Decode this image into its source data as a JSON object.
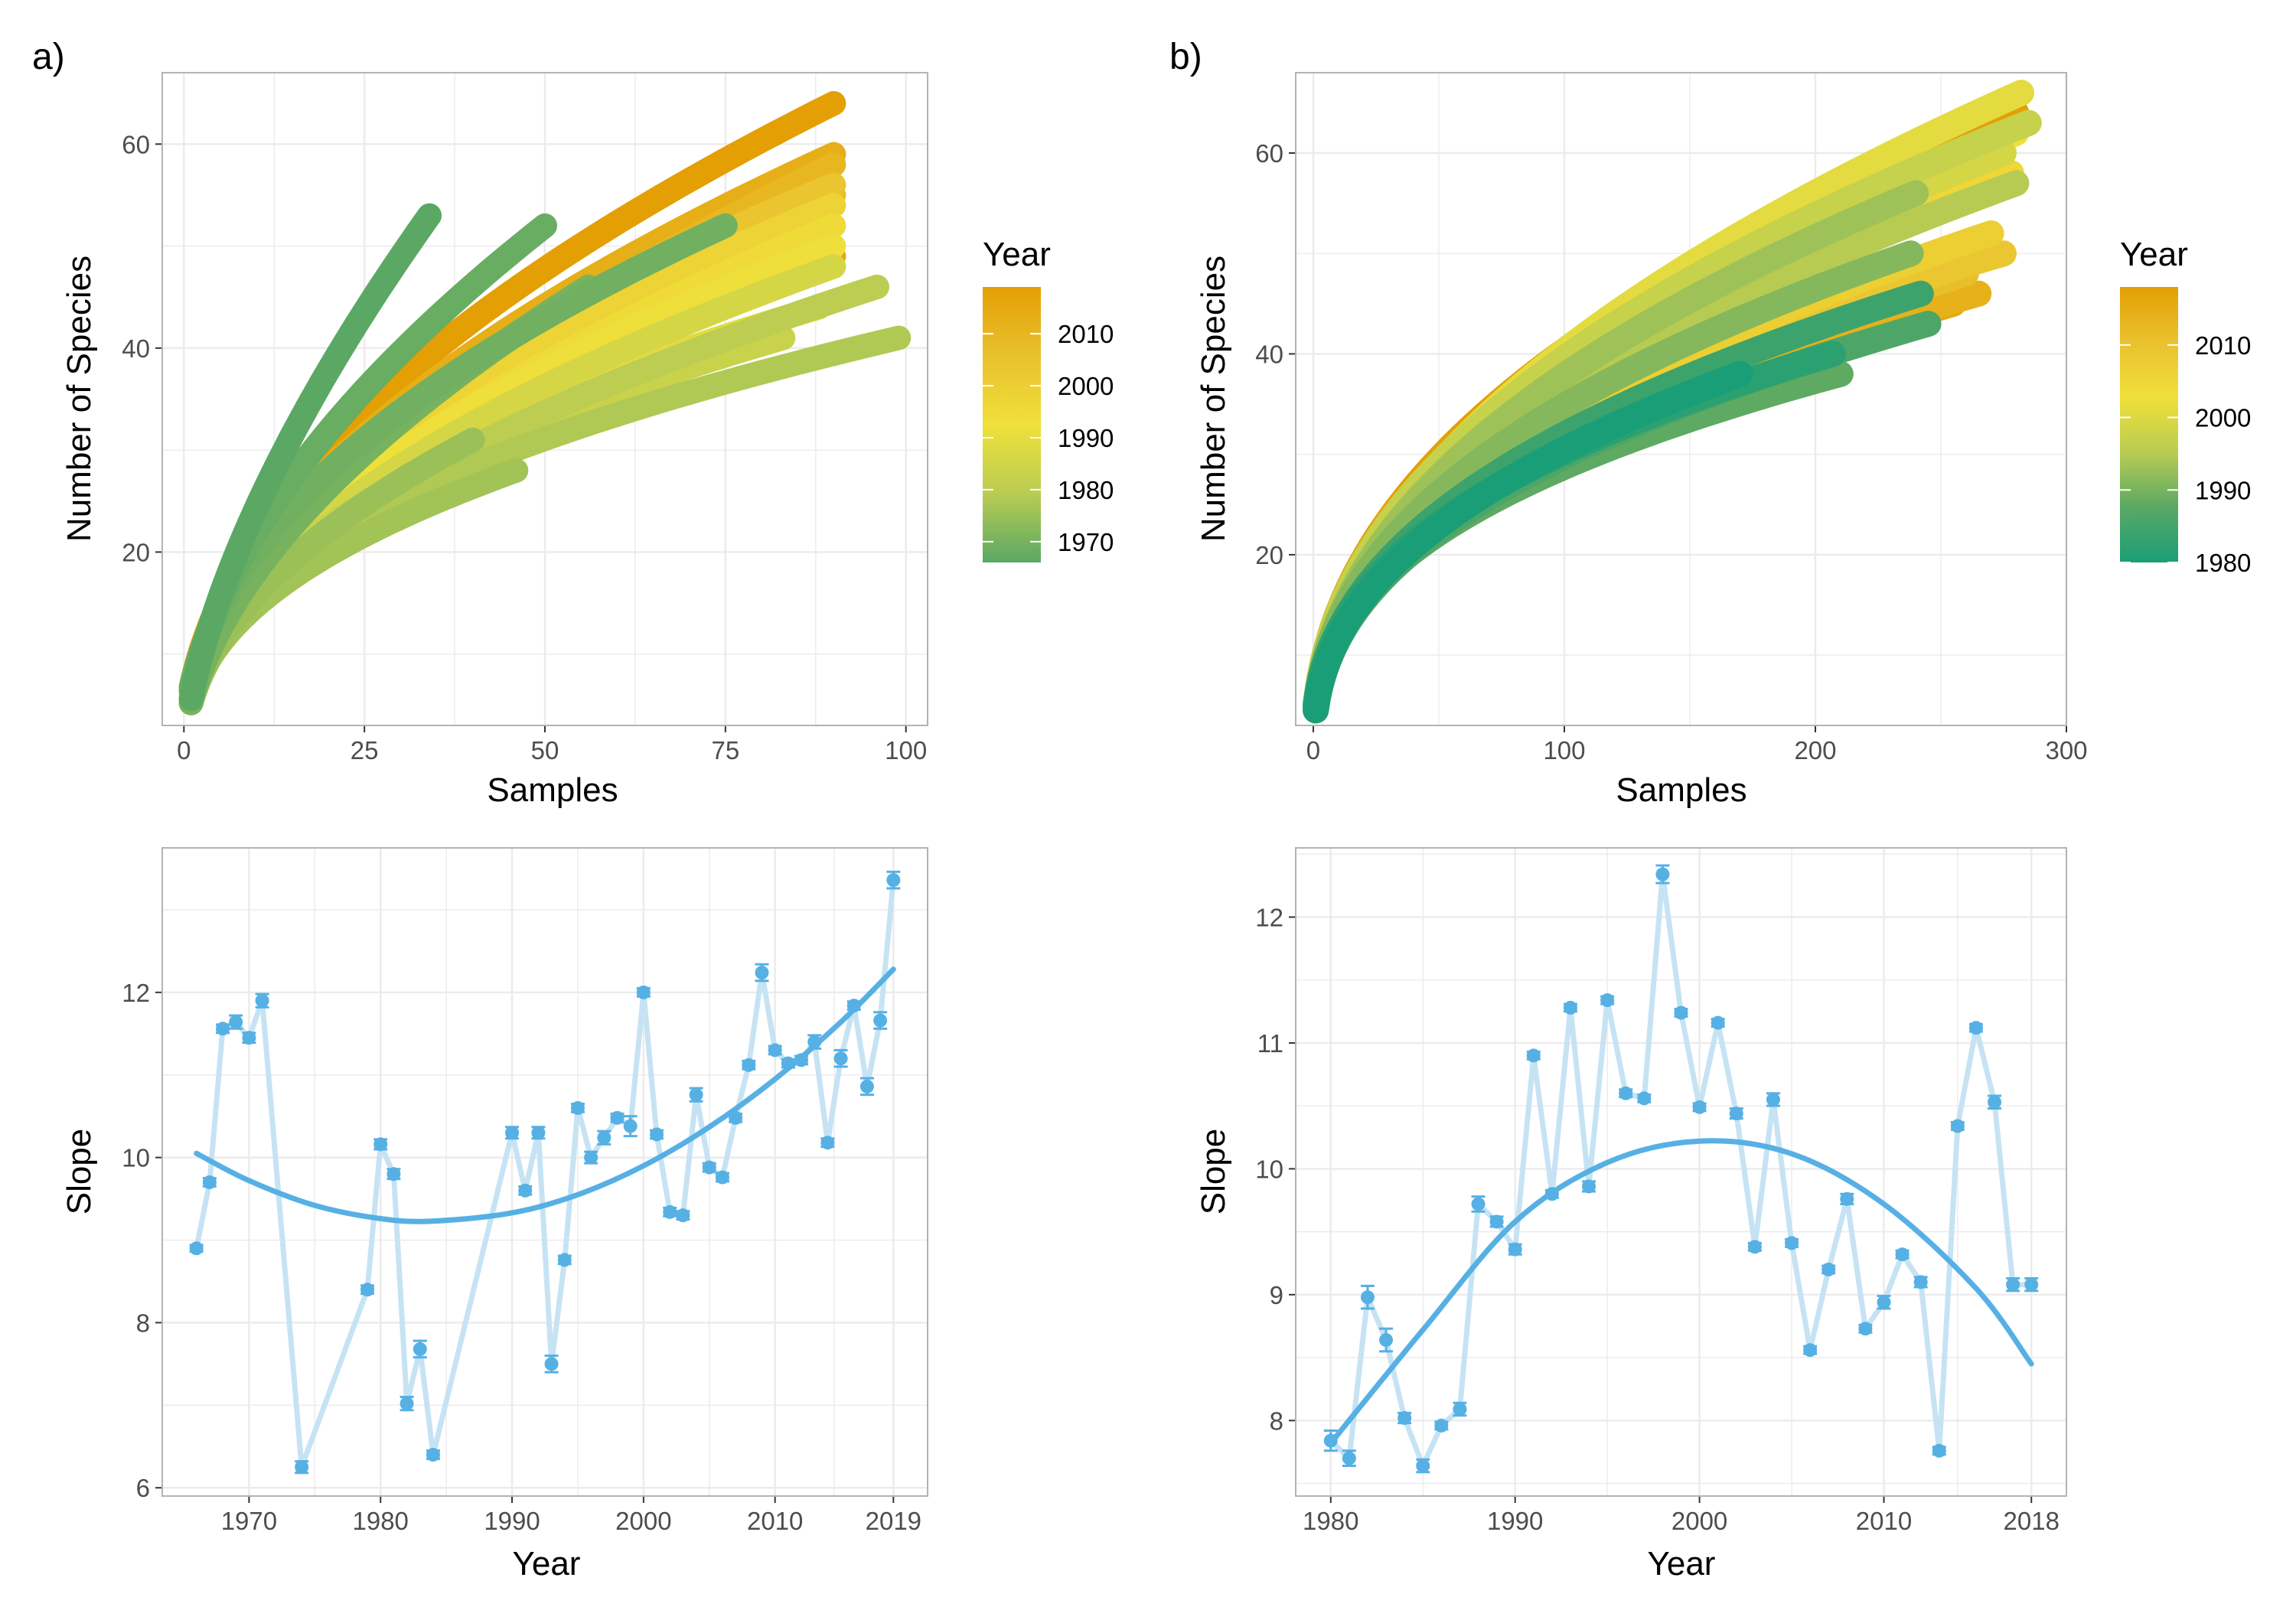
{
  "panels": {
    "a": {
      "letter": "a)"
    },
    "b": {
      "letter": "b)"
    }
  },
  "colors": {
    "dark_green": "#1a9e77",
    "green": "#5aa864",
    "olive": "#b9cc52",
    "yellow": "#f0e03a",
    "gold": "#e9c12e",
    "orange": "#e49f04",
    "slope_point": "#56b0e4",
    "slope_line": "#c6e3f4",
    "fit_line": "#56b0e4",
    "grid": "#ebebeb",
    "frame": "#b3b3b3"
  },
  "chart_data": [
    {
      "id": "a-top",
      "type": "scatter",
      "xlabel": "Samples",
      "ylabel": "Number of Species",
      "xlim": [
        -3,
        103
      ],
      "ylim": [
        3,
        67
      ],
      "xticks": [
        0,
        25,
        50,
        75,
        100
      ],
      "yticks": [
        20,
        40,
        60
      ],
      "legend": {
        "title": "Year",
        "position": "right",
        "range": [
          1966,
          2019
        ],
        "breaks": [
          2010,
          2000,
          1990,
          1980,
          1970
        ],
        "palette": "#5aa864,#b9cc52,#f0e03a,#e9c12e,#e49f04"
      },
      "series": [
        {
          "year": 1966,
          "n": 34,
          "s": 53
        },
        {
          "year": 1968,
          "n": 50,
          "s": 52
        },
        {
          "year": 1969,
          "n": 75,
          "s": 52
        },
        {
          "year": 1970,
          "n": 56,
          "s": 46
        },
        {
          "year": 1971,
          "n": 12,
          "s": 26
        },
        {
          "year": 1975,
          "n": 40,
          "s": 31
        },
        {
          "year": 1976,
          "n": 46,
          "s": 28
        },
        {
          "year": 1978,
          "n": 99,
          "s": 41
        },
        {
          "year": 1980,
          "n": 96,
          "s": 46
        },
        {
          "year": 1983,
          "n": 83,
          "s": 41
        },
        {
          "year": 1986,
          "n": 90,
          "s": 48
        },
        {
          "year": 1989,
          "n": 88,
          "s": 44
        },
        {
          "year": 1992,
          "n": 90,
          "s": 50
        },
        {
          "year": 1995,
          "n": 90,
          "s": 52
        },
        {
          "year": 1998,
          "n": 90,
          "s": 54
        },
        {
          "year": 2001,
          "n": 85,
          "s": 48
        },
        {
          "year": 2004,
          "n": 90,
          "s": 56
        },
        {
          "year": 2007,
          "n": 90,
          "s": 55
        },
        {
          "year": 2010,
          "n": 90,
          "s": 58
        },
        {
          "year": 2013,
          "n": 90,
          "s": 59
        },
        {
          "year": 2016,
          "n": 90,
          "s": 49
        },
        {
          "year": 2019,
          "n": 90,
          "s": 64
        }
      ]
    },
    {
      "id": "b-top",
      "type": "scatter",
      "xlabel": "Samples",
      "ylabel": "Number of Species",
      "xlim": [
        -7,
        300
      ],
      "ylim": [
        3,
        68
      ],
      "xticks": [
        0,
        100,
        200,
        300
      ],
      "yticks": [
        20,
        40,
        60
      ],
      "legend": {
        "title": "Year",
        "position": "right",
        "range": [
          1980,
          2018
        ],
        "breaks": [
          2010,
          2000,
          1990,
          1980
        ],
        "palette": "#1a9e77,#5aa864,#b9cc52,#f0e03a,#e9c12e,#e49f04"
      },
      "series": [
        {
          "year": 1980,
          "n": 170,
          "s": 38
        },
        {
          "year": 1982,
          "n": 207,
          "s": 40
        },
        {
          "year": 1984,
          "n": 242,
          "s": 46
        },
        {
          "year": 1986,
          "n": 245,
          "s": 43
        },
        {
          "year": 1988,
          "n": 210,
          "s": 38
        },
        {
          "year": 1991,
          "n": 238,
          "s": 50
        },
        {
          "year": 1993,
          "n": 240,
          "s": 56
        },
        {
          "year": 1995,
          "n": 280,
          "s": 57
        },
        {
          "year": 1997,
          "n": 285,
          "s": 63
        },
        {
          "year": 1999,
          "n": 275,
          "s": 60
        },
        {
          "year": 2001,
          "n": 282,
          "s": 66
        },
        {
          "year": 2003,
          "n": 280,
          "s": 62
        },
        {
          "year": 2005,
          "n": 278,
          "s": 58
        },
        {
          "year": 2007,
          "n": 270,
          "s": 52
        },
        {
          "year": 2009,
          "n": 275,
          "s": 50
        },
        {
          "year": 2011,
          "n": 260,
          "s": 48
        },
        {
          "year": 2014,
          "n": 265,
          "s": 46
        },
        {
          "year": 2016,
          "n": 255,
          "s": 45
        },
        {
          "year": 2018,
          "n": 280,
          "s": 64
        }
      ]
    },
    {
      "id": "a-bottom",
      "type": "line",
      "xlabel": "Year",
      "ylabel": "Slope",
      "xlim": [
        1963.4,
        2021.6
      ],
      "ylim": [
        5.9,
        13.75
      ],
      "xticks": [
        1970,
        1980,
        1990,
        2000,
        2010,
        2019
      ],
      "yticks": [
        6,
        8,
        10,
        12
      ],
      "series": [
        {
          "name": "",
          "x": [
            1966,
            1967,
            1968,
            1969,
            1970,
            1971,
            1974,
            1979,
            1980,
            1981,
            1982,
            1983,
            1984,
            1990,
            1991,
            1992,
            1993,
            1994,
            1995,
            1996,
            1997,
            1998,
            1999,
            2000,
            2001,
            2002,
            2003,
            2004,
            2005,
            2006,
            2007,
            2008,
            2009,
            2010,
            2011,
            2012,
            2013,
            2014,
            2015,
            2016,
            2017,
            2018,
            2019
          ],
          "y": [
            8.9,
            9.7,
            11.56,
            11.64,
            11.45,
            11.9,
            6.25,
            8.4,
            10.16,
            9.8,
            7.02,
            7.68,
            6.4,
            10.3,
            9.6,
            10.3,
            7.5,
            8.76,
            10.6,
            10.0,
            10.24,
            10.48,
            10.38,
            12.0,
            10.28,
            9.34,
            9.3,
            10.76,
            9.88,
            9.76,
            10.48,
            11.12,
            12.24,
            11.3,
            11.14,
            11.18,
            11.4,
            10.18,
            11.2,
            11.84,
            10.86,
            11.66,
            13.36
          ],
          "err": [
            0.04,
            0.05,
            0.05,
            0.08,
            0.06,
            0.08,
            0.07,
            0.05,
            0.06,
            0.06,
            0.08,
            0.1,
            0.05,
            0.07,
            0.05,
            0.07,
            0.1,
            0.05,
            0.05,
            0.07,
            0.08,
            0.05,
            0.12,
            0.05,
            0.05,
            0.05,
            0.05,
            0.08,
            0.05,
            0.05,
            0.05,
            0.05,
            0.1,
            0.05,
            0.05,
            0.05,
            0.08,
            0.05,
            0.1,
            0.05,
            0.1,
            0.1,
            0.1
          ]
        },
        {
          "name": "",
          "fit": true,
          "x": [
            1966,
            1970,
            1975,
            1980,
            1984,
            1990,
            1995,
            2000,
            2005,
            2010,
            2015,
            2019
          ],
          "y": [
            10.05,
            9.72,
            9.42,
            9.26,
            9.23,
            9.33,
            9.55,
            9.9,
            10.37,
            10.95,
            11.64,
            12.28
          ]
        }
      ]
    },
    {
      "id": "b-bottom",
      "type": "line",
      "xlabel": "Year",
      "ylabel": "Slope",
      "xlim": [
        1978.1,
        2019.9
      ],
      "ylim": [
        7.4,
        12.55
      ],
      "xticks": [
        1980,
        1990,
        2000,
        2010,
        2018
      ],
      "yticks": [
        8,
        9,
        10,
        11,
        12
      ],
      "series": [
        {
          "name": "",
          "x": [
            1980,
            1981,
            1982,
            1983,
            1984,
            1985,
            1986,
            1987,
            1988,
            1989,
            1990,
            1991,
            1992,
            1993,
            1994,
            1995,
            1996,
            1997,
            1998,
            1999,
            2000,
            2001,
            2002,
            2003,
            2004,
            2005,
            2006,
            2007,
            2008,
            2009,
            2010,
            2011,
            2012,
            2013,
            2014,
            2015,
            2016,
            2017,
            2018
          ],
          "y": [
            7.84,
            7.7,
            8.98,
            8.64,
            8.02,
            7.64,
            7.96,
            8.09,
            9.72,
            9.58,
            9.36,
            10.9,
            9.8,
            11.28,
            9.86,
            11.34,
            10.6,
            10.56,
            12.34,
            11.24,
            10.49,
            11.16,
            10.44,
            9.38,
            10.55,
            9.41,
            8.56,
            9.2,
            9.76,
            8.73,
            8.94,
            9.32,
            9.1,
            7.76,
            10.34,
            11.12,
            10.53,
            9.08,
            9.08
          ],
          "err": [
            0.08,
            0.06,
            0.09,
            0.09,
            0.04,
            0.05,
            0.03,
            0.05,
            0.06,
            0.04,
            0.04,
            0.03,
            0.03,
            0.03,
            0.04,
            0.03,
            0.03,
            0.03,
            0.07,
            0.03,
            0.03,
            0.03,
            0.04,
            0.03,
            0.05,
            0.03,
            0.03,
            0.03,
            0.04,
            0.03,
            0.05,
            0.03,
            0.04,
            0.03,
            0.03,
            0.03,
            0.05,
            0.05,
            0.05
          ]
        },
        {
          "name": "",
          "fit": true,
          "x": [
            1980,
            1985,
            1990,
            1995,
            2000,
            2005,
            2010,
            2015,
            2018
          ],
          "y": [
            7.82,
            8.72,
            9.58,
            10.05,
            10.22,
            10.12,
            9.72,
            9.05,
            8.45
          ]
        }
      ]
    }
  ]
}
